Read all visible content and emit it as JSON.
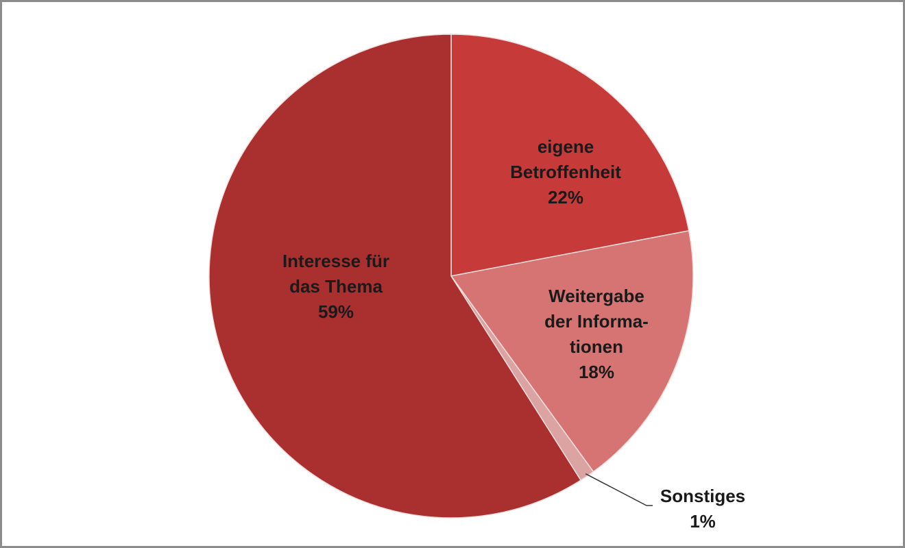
{
  "chart_data": {
    "type": "pie",
    "categories": [
      [
        "eigene",
        "Betroffenheit"
      ],
      [
        "Weitergabe",
        "der Informa-",
        "tionen"
      ],
      [
        "Sonstiges"
      ],
      [
        "Interesse für",
        "das Thema"
      ]
    ],
    "values": [
      22,
      18,
      1,
      59
    ],
    "value_labels": [
      "22%",
      "18%",
      "1%",
      "59%"
    ],
    "colors": [
      "#c63b3a",
      "#d57472",
      "#dba3a2",
      "#a9302f"
    ]
  }
}
